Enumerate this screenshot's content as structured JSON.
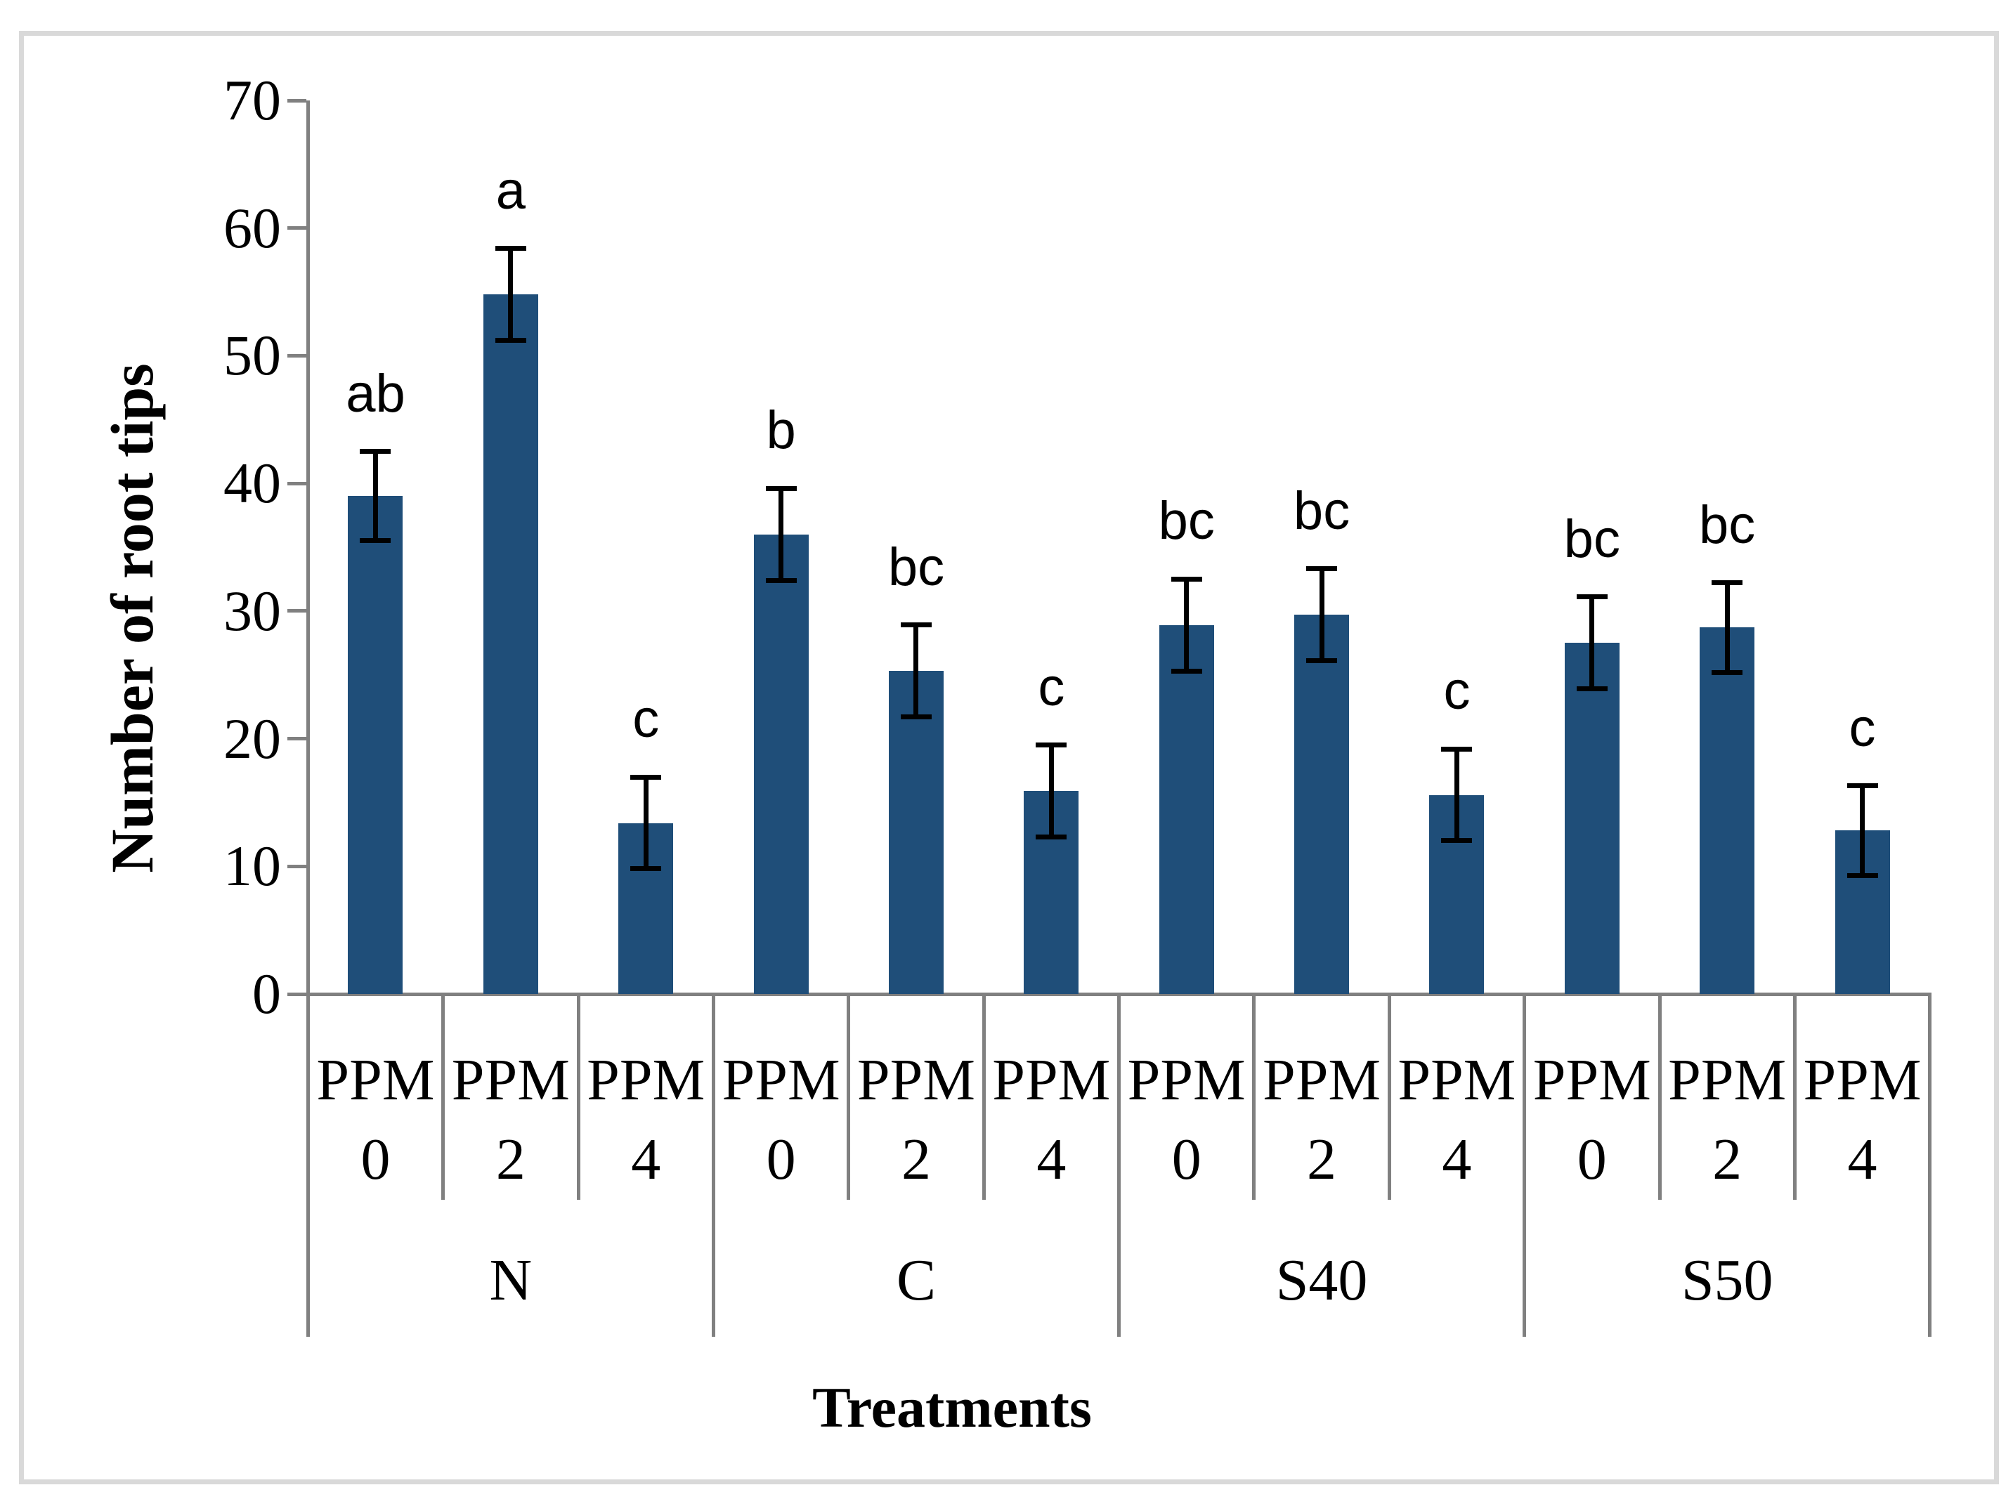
{
  "figure": {
    "background": "#FFFFFF",
    "border_color": "#D9D9D9"
  },
  "chart_data": {
    "type": "bar",
    "title": "",
    "xlabel": "Treatments",
    "ylabel": "Number of root tips",
    "ylim": [
      0,
      70
    ],
    "yticks": [
      0,
      10,
      20,
      30,
      40,
      50,
      60,
      70
    ],
    "grid": false,
    "legend": null,
    "bar_color": "#1F4E79",
    "axis_color": "#808080",
    "error_bar_color": "#000000",
    "x_level1_label": "PPM",
    "groups": [
      {
        "label": "N",
        "bars": [
          {
            "ppm": "0",
            "value": 39.0,
            "error": 3.5,
            "letter": "ab"
          },
          {
            "ppm": "2",
            "value": 54.8,
            "error": 3.6,
            "letter": "a"
          },
          {
            "ppm": "4",
            "value": 13.4,
            "error": 3.6,
            "letter": "c"
          }
        ]
      },
      {
        "label": "C",
        "bars": [
          {
            "ppm": "0",
            "value": 36.0,
            "error": 3.6,
            "letter": "b"
          },
          {
            "ppm": "2",
            "value": 25.3,
            "error": 3.6,
            "letter": "bc"
          },
          {
            "ppm": "4",
            "value": 15.9,
            "error": 3.6,
            "letter": "c"
          }
        ]
      },
      {
        "label": "S40",
        "bars": [
          {
            "ppm": "0",
            "value": 28.9,
            "error": 3.6,
            "letter": "bc"
          },
          {
            "ppm": "2",
            "value": 29.7,
            "error": 3.6,
            "letter": "bc"
          },
          {
            "ppm": "4",
            "value": 15.6,
            "error": 3.6,
            "letter": "c"
          }
        ]
      },
      {
        "label": "S50",
        "bars": [
          {
            "ppm": "0",
            "value": 27.5,
            "error": 3.6,
            "letter": "bc"
          },
          {
            "ppm": "2",
            "value": 28.7,
            "error": 3.5,
            "letter": "bc"
          },
          {
            "ppm": "4",
            "value": 12.8,
            "error": 3.5,
            "letter": "c"
          }
        ]
      }
    ]
  }
}
